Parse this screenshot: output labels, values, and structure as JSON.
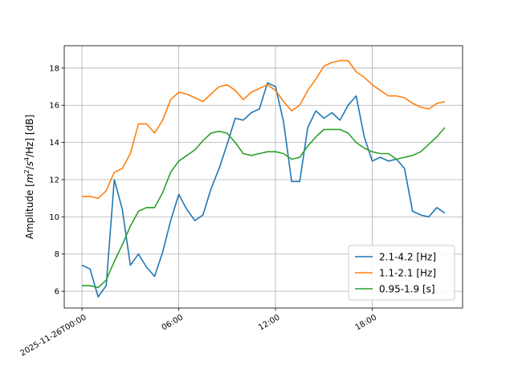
{
  "chart_data": {
    "type": "line",
    "xlabel": "",
    "ylabel": "Amplitude [m²/s⁴/Hz] [dB]",
    "ylabel_parts": {
      "prefix": "Amplitude [",
      "m": "m",
      "two": "2",
      "mid": "/",
      "s": "s",
      "four": "4",
      "tail": "/Hz] [dB]"
    },
    "x_ticks": [
      "2025-11-26T00:00",
      "06:00",
      "12:00",
      "18:00"
    ],
    "y_ticks": [
      "6",
      "8",
      "10",
      "12",
      "14",
      "16",
      "18"
    ],
    "xlim_hours": [
      -1.1,
      23.6
    ],
    "ylim": [
      5.1,
      19.2
    ],
    "grid": true,
    "legend_position": "lower-right",
    "x_hours": [
      0,
      0.5,
      1,
      1.5,
      2,
      2.5,
      3,
      3.5,
      4,
      4.5,
      5,
      5.5,
      6,
      6.5,
      7,
      7.5,
      8,
      8.5,
      9,
      9.5,
      10,
      10.5,
      11,
      11.5,
      12,
      12.5,
      13,
      13.5,
      14,
      14.5,
      15,
      15.5,
      16,
      16.5,
      17,
      17.5,
      18,
      18.5,
      19,
      19.5,
      20,
      20.5,
      21,
      21.5,
      22,
      22.5
    ],
    "series": [
      {
        "name": "2.1-4.2 [Hz]",
        "color": "#1f77b4",
        "values": [
          7.4,
          7.2,
          5.7,
          6.3,
          12.0,
          10.4,
          7.4,
          8.0,
          7.3,
          6.8,
          8.1,
          9.8,
          11.2,
          10.4,
          9.8,
          10.1,
          11.5,
          12.6,
          13.9,
          15.3,
          15.2,
          15.6,
          15.8,
          17.2,
          17.0,
          15.1,
          11.9,
          11.9,
          14.8,
          15.7,
          15.3,
          15.6,
          15.2,
          16.0,
          16.5,
          14.3,
          13.0,
          13.2,
          13.0,
          13.1,
          12.6,
          10.3,
          10.1,
          10.0,
          10.5,
          10.2
        ]
      },
      {
        "name": "1.1-2.1 [Hz]",
        "color": "#ff7f0e",
        "values": [
          11.1,
          11.1,
          11.0,
          11.4,
          12.4,
          12.6,
          13.4,
          15.0,
          15.0,
          14.5,
          15.2,
          16.3,
          16.7,
          16.6,
          16.4,
          16.2,
          16.6,
          17.0,
          17.1,
          16.8,
          16.3,
          16.7,
          16.9,
          17.1,
          16.8,
          16.2,
          15.7,
          16.0,
          16.8,
          17.4,
          18.1,
          18.3,
          18.4,
          18.4,
          17.8,
          17.5,
          17.1,
          16.8,
          16.5,
          16.5,
          16.4,
          16.1,
          15.9,
          15.8,
          16.1,
          16.2
        ]
      },
      {
        "name": "0.95-1.9 [s]",
        "color": "#2ca02c",
        "values": [
          6.3,
          6.3,
          6.2,
          6.6,
          7.6,
          8.5,
          9.5,
          10.3,
          10.5,
          10.5,
          11.3,
          12.4,
          13.0,
          13.3,
          13.6,
          14.1,
          14.5,
          14.6,
          14.5,
          14.0,
          13.4,
          13.3,
          13.4,
          13.5,
          13.5,
          13.4,
          13.1,
          13.2,
          13.8,
          14.3,
          14.7,
          14.7,
          14.7,
          14.5,
          14.0,
          13.7,
          13.5,
          13.4,
          13.4,
          13.1,
          13.2,
          13.3,
          13.5,
          13.9,
          14.3,
          14.8
        ]
      }
    ]
  }
}
